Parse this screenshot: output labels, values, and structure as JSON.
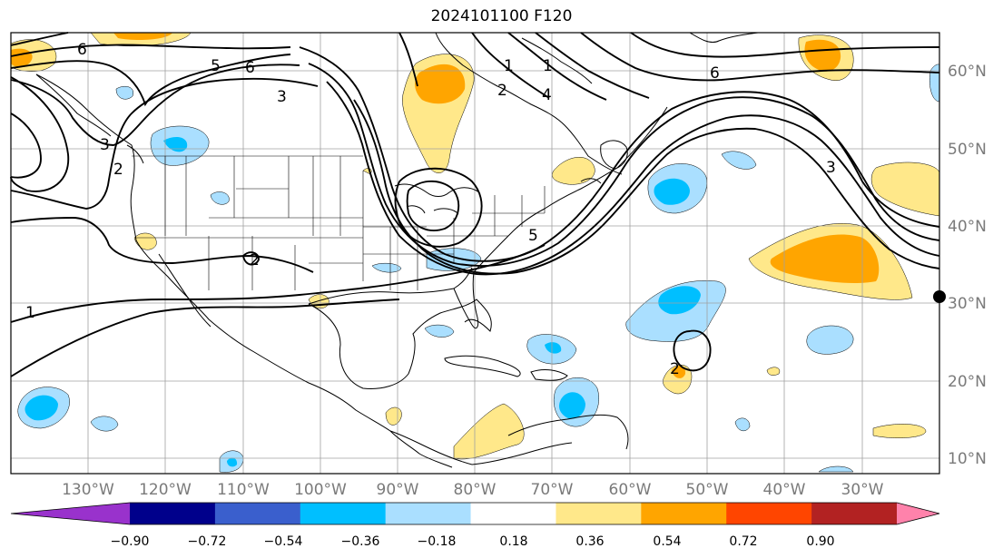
{
  "title": "2024101100 F120",
  "lat_labels": [
    "60°N",
    "50°N",
    "40°N",
    "30°N",
    "20°N",
    "10°N"
  ],
  "lon_labels": [
    "130°W",
    "120°W",
    "110°W",
    "100°W",
    "90°W",
    "80°W",
    "70°W",
    "60°W",
    "50°W",
    "40°W",
    "30°W"
  ],
  "colorbar": {
    "ticks": [
      "−0.90",
      "−0.72",
      "−0.54",
      "−0.36",
      "−0.18",
      "0.18",
      "0.36",
      "0.54",
      "0.72",
      "0.90"
    ],
    "colors": [
      "#9932cc",
      "#00008b",
      "#3a5fcd",
      "#00bfff",
      "#aadfff",
      "#ffffff",
      "#ffe88a",
      "#ffa500",
      "#ff4500",
      "#b22222",
      "#ff82ab"
    ]
  },
  "contour_labels": [
    "6",
    "6",
    "3",
    "5",
    "3",
    "2",
    "2",
    "1",
    "2",
    "4",
    "6",
    "3",
    "5",
    "2",
    "1",
    "1"
  ],
  "colors": {
    "contour": "#000000",
    "grid": "#a0a0a0",
    "coast": "#000000"
  }
}
